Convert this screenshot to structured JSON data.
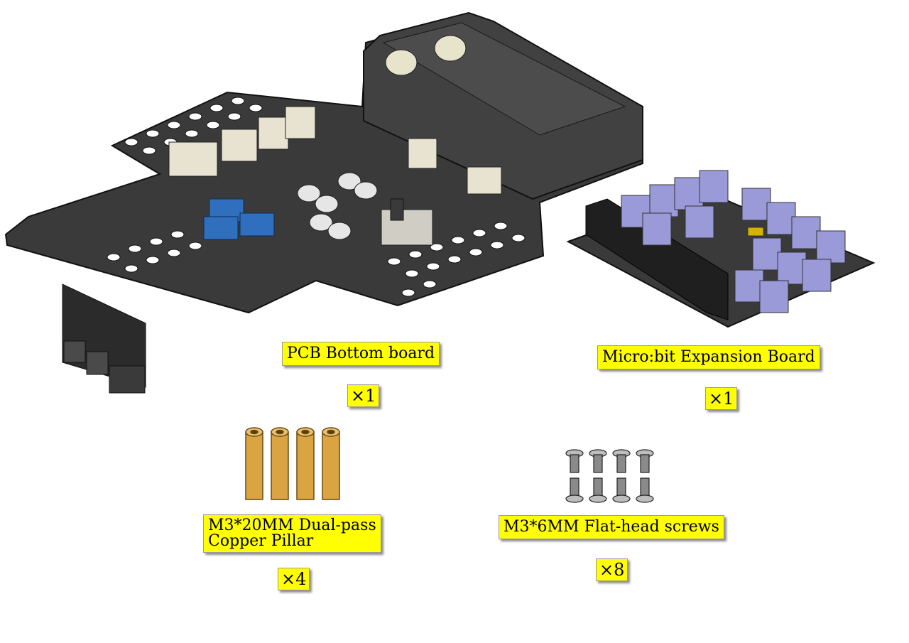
{
  "parts": [
    {
      "id": "pcb-bottom-board",
      "name": "PCB Bottom board",
      "quantity": "×1",
      "icon": "pcb-board-illustration"
    },
    {
      "id": "microbit-expansion-board",
      "name": "Micro:bit Expansion Board",
      "quantity": "×1",
      "icon": "expansion-board-illustration"
    },
    {
      "id": "copper-pillar",
      "name": "M3*20MM Dual-pass\nCopper Pillar",
      "quantity": "×4",
      "icon": "copper-pillar-illustration"
    },
    {
      "id": "flat-head-screws",
      "name": "M3*6MM Flat-head screws",
      "quantity": "×8",
      "icon": "screw-illustration"
    }
  ],
  "colors": {
    "label_bg": "#ffff00",
    "board": "#3a3a3a",
    "connector": "#9a9ad8",
    "brass": "#d9a441"
  }
}
